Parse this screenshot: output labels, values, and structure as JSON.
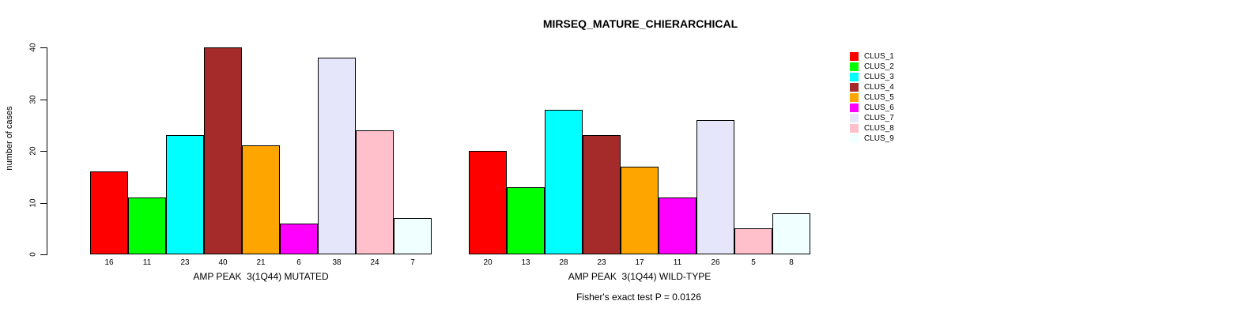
{
  "chart_data": {
    "type": "bar",
    "title": "MIRSEQ_MATURE_CHIERARCHICAL",
    "ylabel": "number of cases",
    "ylim": [
      0,
      40
    ],
    "yticks": [
      0,
      10,
      20,
      30,
      40
    ],
    "grid": false,
    "background": "#ffffff",
    "bar_border_color": "#000000",
    "categories": [
      "CLUS_1",
      "CLUS_2",
      "CLUS_3",
      "CLUS_4",
      "CLUS_5",
      "CLUS_6",
      "CLUS_7",
      "CLUS_8",
      "CLUS_9"
    ],
    "colors": [
      "#FF0000",
      "#00FF00",
      "#00FFFF",
      "#A52A2A",
      "#FFA500",
      "#FF00FF",
      "#E6E6FA",
      "#FFC0CB",
      "#F0FFFF"
    ],
    "legend": {
      "position": "right"
    },
    "panels": [
      {
        "name": "mutated",
        "xlabel": "AMP PEAK  3(1Q44) MUTATED",
        "values": [
          16,
          11,
          23,
          40,
          21,
          6,
          38,
          24,
          7
        ]
      },
      {
        "name": "wild-type",
        "xlabel": "AMP PEAK  3(1Q44) WILD-TYPE",
        "values": [
          20,
          13,
          28,
          23,
          17,
          11,
          26,
          5,
          8
        ]
      }
    ],
    "annotation": "Fisher's exact test P = 0.0126"
  }
}
